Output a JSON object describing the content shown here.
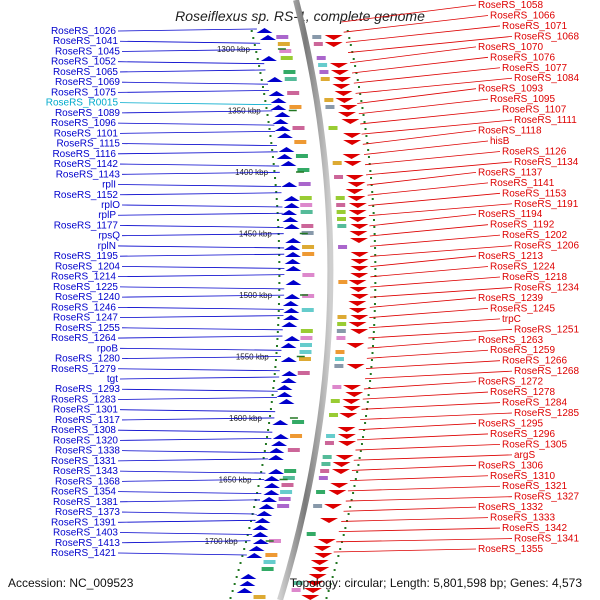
{
  "title": "Roseiflexus sp. RS-1, complete genome",
  "accession_text": "Accession: NC_009523",
  "topology_text": "Topology: circular; Length: 5,801,598 bp; Genes: 4,573",
  "colors": {
    "forward": "#0000cc",
    "reverse": "#dd0000",
    "rna": "#00aacc",
    "backbone": "#999999",
    "ticks": "#227722"
  },
  "scale_labels": [
    "1300 kbp",
    "1350 kbp",
    "1400 kbp",
    "1450 kbp",
    "1500 kbp",
    "1550 kbp",
    "1600 kbp",
    "1650 kbp",
    "1700 kbp"
  ],
  "left_labels": [
    {
      "text": "RoseRS_1026",
      "strand": "forward"
    },
    {
      "text": "RoseRS_1041",
      "strand": "forward"
    },
    {
      "text": "RoseRS_1045",
      "strand": "forward"
    },
    {
      "text": "RoseRS_1052",
      "strand": "forward"
    },
    {
      "text": "RoseRS_1065",
      "strand": "forward"
    },
    {
      "text": "RoseRS_1069",
      "strand": "forward"
    },
    {
      "text": "RoseRS_1075",
      "strand": "forward"
    },
    {
      "text": "RoseRS_R0015",
      "strand": "rna"
    },
    {
      "text": "RoseRS_1089",
      "strand": "forward"
    },
    {
      "text": "RoseRS_1096",
      "strand": "forward"
    },
    {
      "text": "RoseRS_1101",
      "strand": "forward"
    },
    {
      "text": "RoseRS_1115",
      "strand": "forward"
    },
    {
      "text": "RoseRS_1116",
      "strand": "forward"
    },
    {
      "text": "RoseRS_1142",
      "strand": "forward"
    },
    {
      "text": "RoseRS_1143",
      "strand": "forward"
    },
    {
      "text": "rplI",
      "strand": "forward"
    },
    {
      "text": "RoseRS_1152",
      "strand": "forward"
    },
    {
      "text": "rplO",
      "strand": "forward"
    },
    {
      "text": "rplP",
      "strand": "forward"
    },
    {
      "text": "RoseRS_1177",
      "strand": "forward"
    },
    {
      "text": "rpsQ",
      "strand": "forward"
    },
    {
      "text": "rplN",
      "strand": "forward"
    },
    {
      "text": "RoseRS_1195",
      "strand": "forward"
    },
    {
      "text": "RoseRS_1204",
      "strand": "forward"
    },
    {
      "text": "RoseRS_1214",
      "strand": "forward"
    },
    {
      "text": "RoseRS_1225",
      "strand": "forward"
    },
    {
      "text": "RoseRS_1240",
      "strand": "forward"
    },
    {
      "text": "RoseRS_1246",
      "strand": "forward"
    },
    {
      "text": "RoseRS_1247",
      "strand": "forward"
    },
    {
      "text": "RoseRS_1255",
      "strand": "forward"
    },
    {
      "text": "RoseRS_1264",
      "strand": "forward"
    },
    {
      "text": "rpoB",
      "strand": "forward"
    },
    {
      "text": "RoseRS_1280",
      "strand": "forward"
    },
    {
      "text": "RoseRS_1279",
      "strand": "forward"
    },
    {
      "text": "tgt",
      "strand": "forward"
    },
    {
      "text": "RoseRS_1293",
      "strand": "forward"
    },
    {
      "text": "RoseRS_1283",
      "strand": "forward"
    },
    {
      "text": "RoseRS_1301",
      "strand": "forward"
    },
    {
      "text": "RoseRS_1317",
      "strand": "forward"
    },
    {
      "text": "RoseRS_1308",
      "strand": "forward"
    },
    {
      "text": "RoseRS_1320",
      "strand": "forward"
    },
    {
      "text": "RoseRS_1338",
      "strand": "forward"
    },
    {
      "text": "RoseRS_1331",
      "strand": "forward"
    },
    {
      "text": "RoseRS_1343",
      "strand": "forward"
    },
    {
      "text": "RoseRS_1368",
      "strand": "forward"
    },
    {
      "text": "RoseRS_1354",
      "strand": "forward"
    },
    {
      "text": "RoseRS_1381",
      "strand": "forward"
    },
    {
      "text": "RoseRS_1373",
      "strand": "forward"
    },
    {
      "text": "RoseRS_1391",
      "strand": "forward"
    },
    {
      "text": "RoseRS_1403",
      "strand": "forward"
    },
    {
      "text": "RoseRS_1413",
      "strand": "forward"
    },
    {
      "text": "RoseRS_1421",
      "strand": "forward"
    }
  ],
  "right_labels": [
    {
      "text": "RoseRS_1058"
    },
    {
      "text": "RoseRS_1066"
    },
    {
      "text": "RoseRS_1071"
    },
    {
      "text": "RoseRS_1068"
    },
    {
      "text": "RoseRS_1070"
    },
    {
      "text": "RoseRS_1076"
    },
    {
      "text": "RoseRS_1077"
    },
    {
      "text": "RoseRS_1084"
    },
    {
      "text": "RoseRS_1093"
    },
    {
      "text": "RoseRS_1095"
    },
    {
      "text": "RoseRS_1107"
    },
    {
      "text": "RoseRS_1111"
    },
    {
      "text": "RoseRS_1118"
    },
    {
      "text": "hisB"
    },
    {
      "text": "RoseRS_1126"
    },
    {
      "text": "RoseRS_1134"
    },
    {
      "text": "RoseRS_1137"
    },
    {
      "text": "RoseRS_1141"
    },
    {
      "text": "RoseRS_1153"
    },
    {
      "text": "RoseRS_1191"
    },
    {
      "text": "RoseRS_1194"
    },
    {
      "text": "RoseRS_1192"
    },
    {
      "text": "RoseRS_1202"
    },
    {
      "text": "RoseRS_1206"
    },
    {
      "text": "RoseRS_1213"
    },
    {
      "text": "RoseRS_1224"
    },
    {
      "text": "RoseRS_1218"
    },
    {
      "text": "RoseRS_1234"
    },
    {
      "text": "RoseRS_1239"
    },
    {
      "text": "RoseRS_1245"
    },
    {
      "text": "trpC"
    },
    {
      "text": "RoseRS_1251"
    },
    {
      "text": "RoseRS_1263"
    },
    {
      "text": "RoseRS_1259"
    },
    {
      "text": "RoseRS_1266"
    },
    {
      "text": "RoseRS_1268"
    },
    {
      "text": "RoseRS_1272"
    },
    {
      "text": "RoseRS_1278"
    },
    {
      "text": "RoseRS_1284"
    },
    {
      "text": "RoseRS_1285"
    },
    {
      "text": "RoseRS_1295"
    },
    {
      "text": "RoseRS_1296"
    },
    {
      "text": "RoseRS_1305"
    },
    {
      "text": "argS"
    },
    {
      "text": "RoseRS_1306"
    },
    {
      "text": "RoseRS_1310"
    },
    {
      "text": "RoseRS_1321"
    },
    {
      "text": "RoseRS_1327"
    },
    {
      "text": "RoseRS_1332"
    },
    {
      "text": "RoseRS_1333"
    },
    {
      "text": "RoseRS_1342"
    },
    {
      "text": "RoseRS_1341"
    },
    {
      "text": "RoseRS_1355"
    }
  ]
}
